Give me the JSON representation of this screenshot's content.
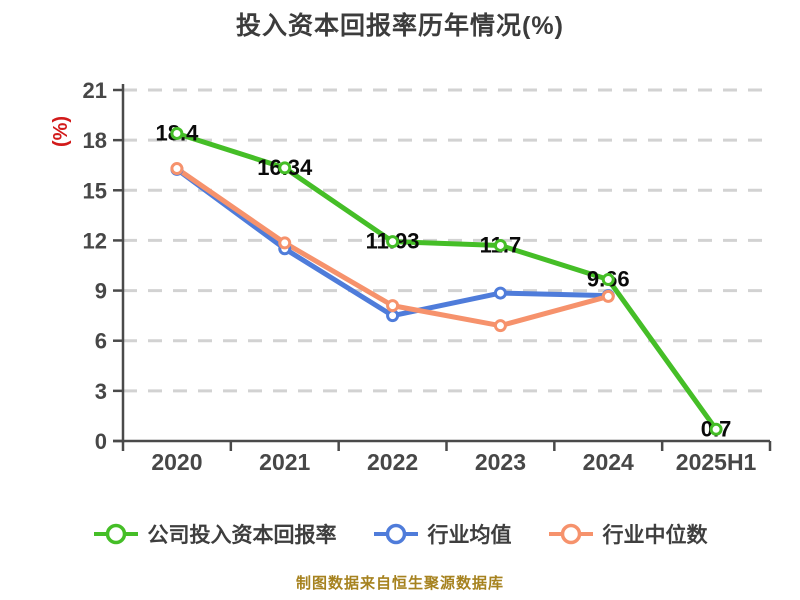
{
  "title": "投入资本回报率历年情况(%)",
  "y_axis": {
    "unit_label": "(%)",
    "tick_values": [
      0,
      3,
      6,
      9,
      12,
      15,
      18,
      21
    ]
  },
  "chart_data": {
    "type": "line",
    "title": "投入资本回报率历年情况(%)",
    "xlabel": "",
    "ylabel": "(%)",
    "ylim": [
      0,
      21
    ],
    "grid": "horizontal-dashed",
    "legend_position": "bottom",
    "categories": [
      "2020",
      "2021",
      "2022",
      "2023",
      "2024",
      "2025H1"
    ],
    "series": [
      {
        "id": "company-roic",
        "name": "公司投入资本回报率",
        "color": "#45BE27",
        "values": [
          18.4,
          16.34,
          11.93,
          11.7,
          9.66,
          0.7
        ],
        "labels": [
          "18.4",
          "16.34",
          "11.93",
          "11.7",
          "9.66",
          "0.7"
        ]
      },
      {
        "id": "industry-average",
        "name": "行业均值",
        "color": "#4F7CDA",
        "values": [
          16.25,
          11.5,
          7.5,
          8.85,
          8.7,
          null
        ],
        "labels": []
      },
      {
        "id": "industry-median",
        "name": "行业中位数",
        "color": "#F6926C",
        "values": [
          16.3,
          11.85,
          8.1,
          6.9,
          8.65,
          null
        ],
        "labels": []
      }
    ]
  },
  "legend": {
    "items": [
      {
        "label": "公司投入资本回报率",
        "color": "#45BE27"
      },
      {
        "label": "行业均值",
        "color": "#4F7CDA"
      },
      {
        "label": "行业中位数",
        "color": "#F6926C"
      }
    ]
  },
  "footer": {
    "text": "制图数据来自恒生聚源数据库"
  },
  "colors": {
    "axis": "#4A4A4A",
    "grid": "#D2D2D2",
    "tick_text": "#474747",
    "data_label": "#0A0A0A",
    "unit_label_red": "#D21A1A",
    "footer_gold": "#A6821F",
    "marker_fill": "#FFFFFF"
  }
}
